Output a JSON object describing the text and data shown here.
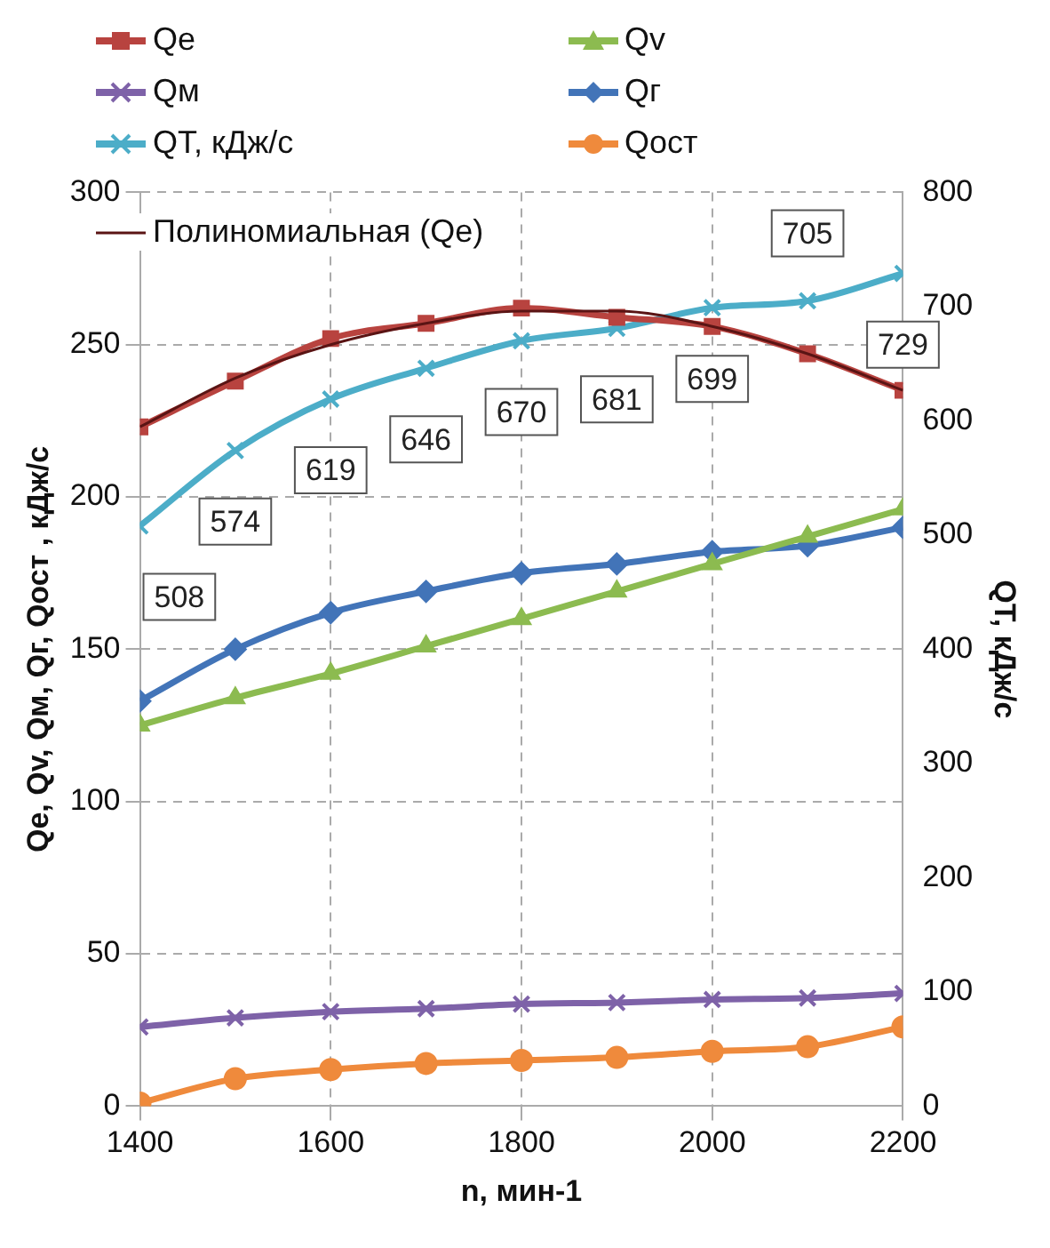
{
  "chart_data": {
    "type": "line",
    "xlabel": "n, мин-1",
    "ylabel": "Qe, Qv, Qм, Qг, Qост , кДж/с",
    "y2label": "QT, кДж/с",
    "x": [
      1400,
      1500,
      1600,
      1700,
      1800,
      1900,
      2000,
      2100,
      2200
    ],
    "xlim": [
      1400,
      2200
    ],
    "xticks": [
      1400,
      1600,
      1800,
      2000,
      2200
    ],
    "ylim": [
      0,
      300
    ],
    "yticks": [
      0,
      50,
      100,
      150,
      200,
      250,
      300
    ],
    "y2lim": [
      0,
      800
    ],
    "y2ticks": [
      0,
      100,
      200,
      300,
      400,
      500,
      600,
      700,
      800
    ],
    "grid": true,
    "legend": "top",
    "line_style": "solid",
    "series": [
      {
        "name": "Qe",
        "color": "#b8433f",
        "marker": "square",
        "values": [
          223,
          238,
          252,
          257,
          262,
          259,
          256,
          247,
          235
        ]
      },
      {
        "name": "Qv",
        "color": "#8cbb50",
        "marker": "triangle",
        "values": [
          125,
          134,
          142,
          151,
          160,
          169,
          178,
          187,
          196
        ]
      },
      {
        "name": "Qм",
        "color": "#7e62a8",
        "marker": "cross",
        "values": [
          26,
          29,
          31,
          32,
          33.5,
          34,
          35,
          35.5,
          37
        ]
      },
      {
        "name": "Qг",
        "color": "#4274b8",
        "marker": "diamond",
        "values": [
          133,
          150,
          162,
          169,
          175,
          178,
          182,
          184,
          190
        ]
      },
      {
        "name": "QT, кДж/с",
        "color": "#4cadc8",
        "marker": "cross",
        "axis": "y2",
        "data_labels": true,
        "values": [
          508,
          574,
          619,
          646,
          670,
          681,
          699,
          705,
          729
        ]
      },
      {
        "name": "Qост",
        "color": "#ef8a3c",
        "marker": "circle",
        "values": [
          1,
          9,
          12,
          14,
          15,
          16,
          18,
          19.5,
          26
        ]
      },
      {
        "name": "Полиномиальная (Qe)",
        "type": "line",
        "color": "#5a1414",
        "marker": "none",
        "x": [
          1400,
          1500,
          1600,
          1700,
          1800,
          1900,
          2000,
          2100,
          2200
        ],
        "values": [
          223,
          239,
          250,
          257,
          261,
          261,
          256,
          247,
          235
        ]
      }
    ]
  }
}
